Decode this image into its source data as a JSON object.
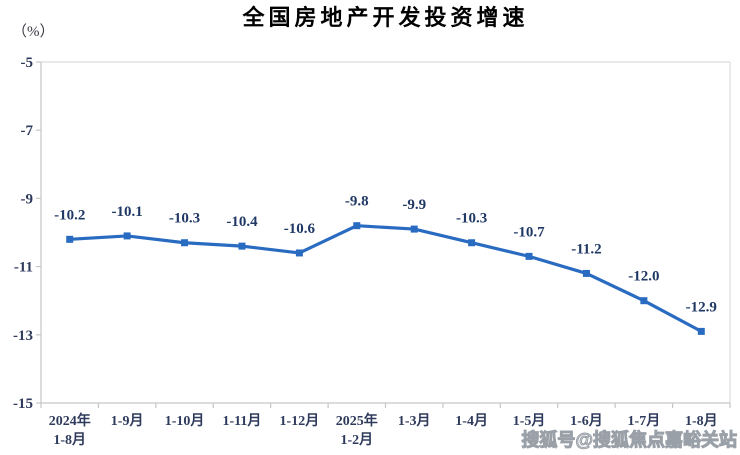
{
  "page": {
    "background": "#ffffff"
  },
  "chart_data": {
    "type": "line",
    "title": "全国房地产开发投资增速",
    "unit_label": "（%）",
    "xlabel": "",
    "ylabel": "（%）",
    "categories": [
      "2024年\n1-8月",
      "1-9月",
      "1-10月",
      "1-11月",
      "1-12月",
      "2025年\n1-2月",
      "1-3月",
      "1-4月",
      "1-5月",
      "1-6月",
      "1-7月",
      "1-8月"
    ],
    "series": [
      {
        "name": "全国房地产开发投资增速",
        "values": [
          -10.2,
          -10.1,
          -10.3,
          -10.4,
          -10.6,
          -9.8,
          -9.9,
          -10.3,
          -10.7,
          -11.2,
          -12.0,
          -12.9
        ]
      }
    ],
    "data_labels": [
      "-10.2",
      "-10.1",
      "-10.3",
      "-10.4",
      "-10.6",
      "-9.8",
      "-9.9",
      "-10.3",
      "-10.7",
      "-11.2",
      "-12.0",
      "-12.9"
    ],
    "y_ticks": [
      -5,
      -7,
      -9,
      -11,
      -13,
      -15
    ],
    "ylim": [
      -15,
      -5
    ],
    "grid": false,
    "legend_position": "none",
    "marker": "square",
    "colors": {
      "line": "#2a6bc2",
      "data_label": "#1f3864",
      "axis_label": "#2f3b5c",
      "axis_line": "#c6c6c6",
      "frame_line": "#dcdcdc",
      "title": "#000000",
      "watermark_stroke": "#9aa0a8"
    }
  },
  "watermark": {
    "text": "搜狐号@搜狐焦点嘉峪关站"
  }
}
